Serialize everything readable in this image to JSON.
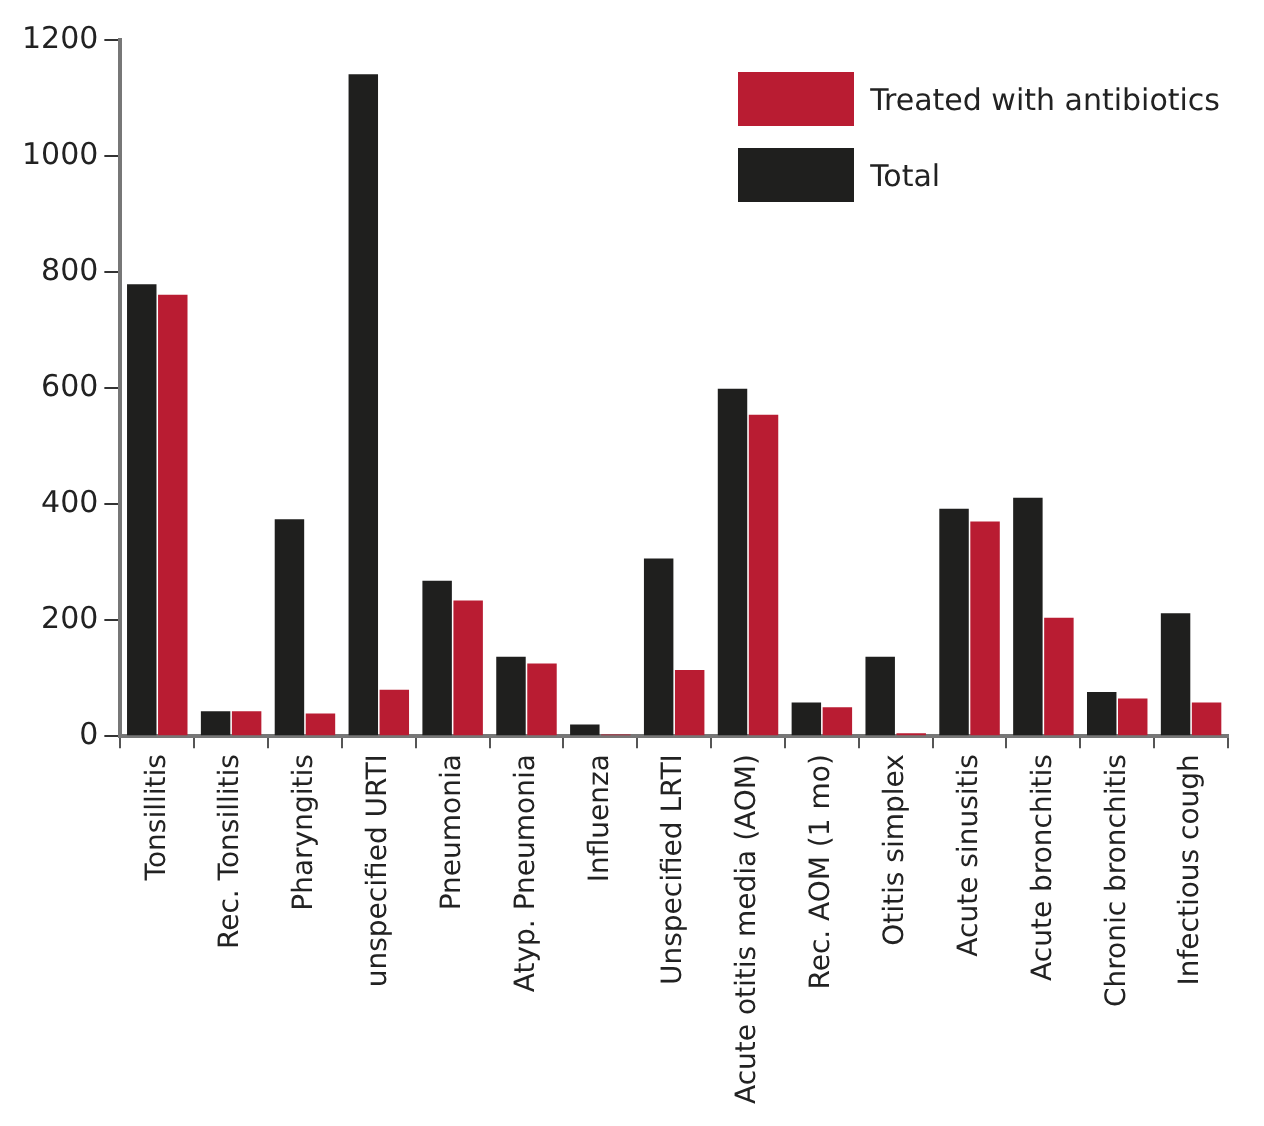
{
  "chart_data": {
    "type": "bar",
    "categories": [
      "Tonsillitis",
      "Rec. Tonsillitis",
      "Pharyngitis",
      "unspecified URTI",
      "Pneumonia",
      "Atyp. Pneumonia",
      "Influenza",
      "Unspecified LRTI",
      "Acute otitis media (AOM)",
      "Rec. AOM (1 mo)",
      "Otitis simplex",
      "Acute sinusitis",
      "Acute bronchitis",
      "Chronic bronchitis",
      "Infectious cough"
    ],
    "series": [
      {
        "name": "Total",
        "color": "#1f1f1e",
        "values": [
          779,
          43,
          374,
          1141,
          268,
          137,
          20,
          306,
          599,
          58,
          137,
          392,
          411,
          76,
          212
        ]
      },
      {
        "name": "Treated with antibiotics",
        "color": "#b91c32",
        "values": [
          761,
          43,
          39,
          80,
          234,
          125,
          3,
          114,
          554,
          50,
          5,
          370,
          204,
          65,
          58
        ]
      }
    ],
    "ylim": [
      0,
      1200
    ],
    "yticks": [
      0,
      200,
      400,
      600,
      800,
      1000,
      1200
    ],
    "grid": false,
    "legend": "top right"
  }
}
